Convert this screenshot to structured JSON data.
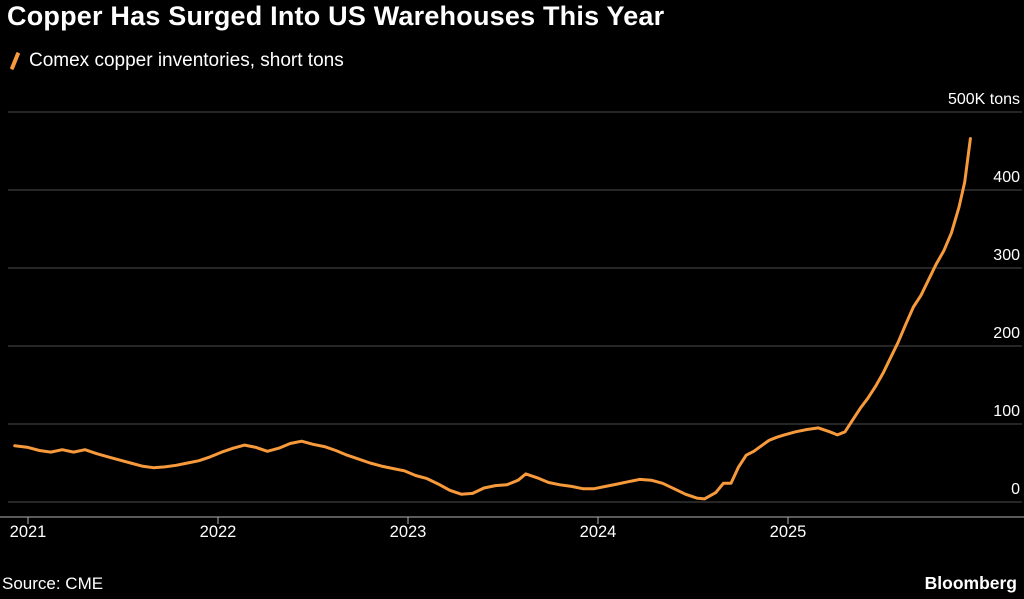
{
  "title": "Copper Has Surged Into US Warehouses This Year",
  "legend": {
    "label": "Comex copper inventories, short tons"
  },
  "source": "Source: CME",
  "brand": "Bloomberg",
  "colors": {
    "line": "#F79A3C",
    "background": "#000000",
    "grid": "#4d4d4d",
    "axis": "#b3b3b3",
    "text": "#ffffff"
  },
  "chart_data": {
    "type": "line",
    "title": "Copper Has Surged Into US Warehouses This Year",
    "series_name": "Comex copper inventories, short tons",
    "unit": "short tons (thousands)",
    "legend_position": "top-left",
    "grid": "horizontal",
    "ylim": [
      0,
      500
    ],
    "y_ticks": [
      500,
      400,
      300,
      200,
      100,
      0
    ],
    "y_tick_labels": [
      "500K tons",
      "400",
      "300",
      "200",
      "100",
      "0"
    ],
    "x_ticks": [
      2021,
      2022,
      2023,
      2024,
      2025
    ],
    "x_tick_labels": [
      "2021",
      "2022",
      "2023",
      "2024",
      "2025"
    ],
    "points": [
      [
        2020.93,
        72
      ],
      [
        2021.0,
        70
      ],
      [
        2021.06,
        66
      ],
      [
        2021.12,
        64
      ],
      [
        2021.18,
        67
      ],
      [
        2021.24,
        64
      ],
      [
        2021.3,
        67
      ],
      [
        2021.36,
        62
      ],
      [
        2021.42,
        58
      ],
      [
        2021.48,
        54
      ],
      [
        2021.54,
        50
      ],
      [
        2021.6,
        46
      ],
      [
        2021.66,
        44
      ],
      [
        2021.72,
        45
      ],
      [
        2021.78,
        47
      ],
      [
        2021.84,
        50
      ],
      [
        2021.9,
        53
      ],
      [
        2021.96,
        58
      ],
      [
        2022.02,
        64
      ],
      [
        2022.08,
        69
      ],
      [
        2022.14,
        73
      ],
      [
        2022.2,
        70
      ],
      [
        2022.26,
        65
      ],
      [
        2022.32,
        69
      ],
      [
        2022.38,
        75
      ],
      [
        2022.44,
        78
      ],
      [
        2022.5,
        74
      ],
      [
        2022.56,
        71
      ],
      [
        2022.62,
        66
      ],
      [
        2022.68,
        60
      ],
      [
        2022.74,
        55
      ],
      [
        2022.8,
        50
      ],
      [
        2022.86,
        46
      ],
      [
        2022.92,
        43
      ],
      [
        2022.98,
        40
      ],
      [
        2023.04,
        34
      ],
      [
        2023.1,
        30
      ],
      [
        2023.16,
        23
      ],
      [
        2023.22,
        15
      ],
      [
        2023.28,
        10
      ],
      [
        2023.34,
        11
      ],
      [
        2023.4,
        18
      ],
      [
        2023.46,
        21
      ],
      [
        2023.52,
        22
      ],
      [
        2023.58,
        28
      ],
      [
        2023.62,
        36
      ],
      [
        2023.68,
        31
      ],
      [
        2023.74,
        25
      ],
      [
        2023.8,
        22
      ],
      [
        2023.86,
        20
      ],
      [
        2023.92,
        17
      ],
      [
        2023.98,
        17
      ],
      [
        2024.04,
        20
      ],
      [
        2024.1,
        23
      ],
      [
        2024.16,
        26
      ],
      [
        2024.22,
        29
      ],
      [
        2024.28,
        28
      ],
      [
        2024.34,
        24
      ],
      [
        2024.4,
        17
      ],
      [
        2024.46,
        10
      ],
      [
        2024.52,
        5
      ],
      [
        2024.56,
        4
      ],
      [
        2024.62,
        12
      ],
      [
        2024.66,
        24
      ],
      [
        2024.7,
        24
      ],
      [
        2024.74,
        45
      ],
      [
        2024.78,
        60
      ],
      [
        2024.82,
        65
      ],
      [
        2024.86,
        72
      ],
      [
        2024.9,
        79
      ],
      [
        2024.94,
        83
      ],
      [
        2024.98,
        86
      ],
      [
        2025.04,
        90
      ],
      [
        2025.1,
        93
      ],
      [
        2025.16,
        95
      ],
      [
        2025.22,
        90
      ],
      [
        2025.26,
        86
      ],
      [
        2025.3,
        90
      ],
      [
        2025.34,
        105
      ],
      [
        2025.38,
        120
      ],
      [
        2025.42,
        133
      ],
      [
        2025.46,
        148
      ],
      [
        2025.5,
        165
      ],
      [
        2025.54,
        185
      ],
      [
        2025.58,
        205
      ],
      [
        2025.62,
        228
      ],
      [
        2025.66,
        250
      ],
      [
        2025.7,
        265
      ],
      [
        2025.74,
        285
      ],
      [
        2025.78,
        305
      ],
      [
        2025.82,
        322
      ],
      [
        2025.86,
        345
      ],
      [
        2025.9,
        378
      ],
      [
        2025.93,
        410
      ],
      [
        2025.96,
        466
      ]
    ]
  }
}
